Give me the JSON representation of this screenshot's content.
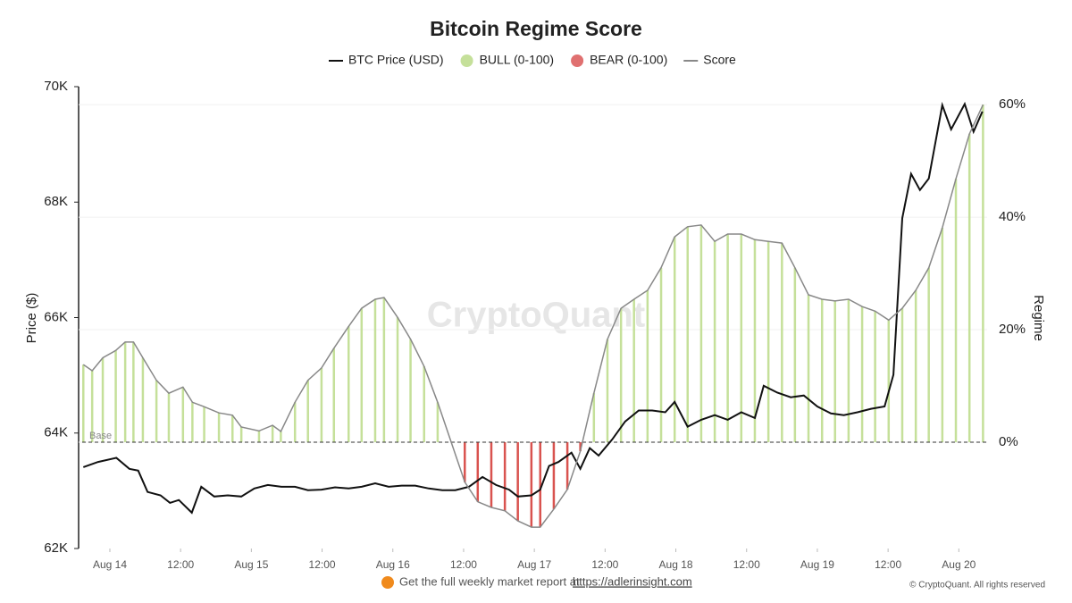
{
  "chart_data": {
    "type": "line",
    "title": "Bitcoin Regime Score",
    "ylabel": "Price ($)",
    "y2label": "Regime",
    "baseline_label": "Base",
    "watermark": "CryptoQuant",
    "footer": "Get the full weekly market report at",
    "footer_link": "https://adlerinsight.com",
    "copyright": "© CryptoQuant. All rights reserved",
    "legend": [
      {
        "name": "BTC Price (USD)",
        "color": "#111111",
        "shape": "line"
      },
      {
        "name": "BULL (0-100)",
        "color": "#c5e09a",
        "shape": "circle"
      },
      {
        "name": "BEAR (0-100)",
        "color": "#e07070",
        "shape": "circle"
      },
      {
        "name": "Score",
        "color": "#888888",
        "shape": "line"
      }
    ],
    "xlim": [
      -5.3,
      148.8
    ],
    "xticks": [
      {
        "value": 0,
        "label": "Aug 14"
      },
      {
        "value": 12,
        "label": "12:00"
      },
      {
        "value": 24,
        "label": "Aug 15"
      },
      {
        "value": 36,
        "label": "12:00"
      },
      {
        "value": 48,
        "label": "Aug 16"
      },
      {
        "value": 60,
        "label": "12:00"
      },
      {
        "value": 72,
        "label": "Aug 17"
      },
      {
        "value": 84,
        "label": "12:00"
      },
      {
        "value": 96,
        "label": "Aug 18"
      },
      {
        "value": 108,
        "label": "12:00"
      },
      {
        "value": 120,
        "label": "Aug 19"
      },
      {
        "value": 132,
        "label": "12:00"
      },
      {
        "value": 144,
        "label": "Aug 20"
      }
    ],
    "ylim": [
      62000,
      70000
    ],
    "yticks": [
      {
        "value": 62000,
        "label": "62K"
      },
      {
        "value": 64000,
        "label": "64K"
      },
      {
        "value": 66000,
        "label": "66K"
      },
      {
        "value": 68000,
        "label": "68K"
      },
      {
        "value": 70000,
        "label": "70K"
      }
    ],
    "y2lim": [
      -18.9,
      63.2
    ],
    "y2ticks": [
      {
        "value": 0,
        "label": "0%"
      },
      {
        "value": 20,
        "label": "20%"
      },
      {
        "value": 40,
        "label": "40%"
      },
      {
        "value": 60,
        "label": "60%"
      }
    ],
    "bull_color": "#c5e09a",
    "bear_color": "#d9534f",
    "series": [
      {
        "name": "BTC Price (USD)",
        "color": "#111111",
        "axis": "y",
        "x": [
          -4.5,
          -2,
          1.1,
          3.3,
          4.8,
          6.4,
          8.6,
          10.2,
          11.7,
          13.9,
          15.5,
          17.7,
          20,
          22.3,
          24.5,
          26.8,
          29.1,
          31.4,
          33.6,
          35.9,
          38.2,
          40.5,
          42.7,
          45,
          47.3,
          49.5,
          51.8,
          54.1,
          56.4,
          58.6,
          60.9,
          63.2,
          65.5,
          67.7,
          69.2,
          71.5,
          73,
          74.5,
          76.1,
          78.3,
          79.8,
          81.4,
          82.9,
          85.2,
          87.4,
          89.7,
          92,
          94.2,
          95.8,
          98,
          100.3,
          102.6,
          104.8,
          107.1,
          109.4,
          110.9,
          113.2,
          115.5,
          117.7,
          120,
          122.3,
          124.5,
          126.8,
          129.1,
          131.4,
          132.9,
          134.4,
          135.9,
          137.4,
          138.9,
          141.2,
          142.7,
          145,
          146.5,
          148
        ],
        "values": [
          63410,
          63500,
          63570,
          63380,
          63350,
          62980,
          62920,
          62790,
          62840,
          62620,
          63070,
          62900,
          62920,
          62900,
          63040,
          63100,
          63070,
          63070,
          63010,
          63020,
          63060,
          63040,
          63070,
          63130,
          63070,
          63090,
          63090,
          63040,
          63010,
          63010,
          63070,
          63240,
          63100,
          63020,
          62900,
          62920,
          63020,
          63430,
          63500,
          63660,
          63380,
          63740,
          63610,
          63890,
          64200,
          64390,
          64390,
          64360,
          64540,
          64110,
          64230,
          64310,
          64230,
          64360,
          64260,
          64820,
          64700,
          64620,
          64650,
          64460,
          64340,
          64310,
          64360,
          64420,
          64460,
          65010,
          67720,
          68490,
          68210,
          68410,
          69680,
          69260,
          69700,
          69220,
          69570
        ]
      },
      {
        "name": "Score",
        "color": "#888888",
        "axis": "y2",
        "x": [
          -4.5,
          -3,
          -1.2,
          1,
          2.6,
          4,
          5.6,
          7.9,
          10,
          12.4,
          14,
          16,
          18.5,
          20.8,
          22.3,
          25.3,
          27.6,
          29,
          31.4,
          33.6,
          35.9,
          38,
          40.5,
          42.7,
          45,
          46.5,
          48.8,
          51,
          53.3,
          55.6,
          57.9,
          60.2,
          62.4,
          64.7,
          67,
          69.2,
          71.5,
          73,
          75.3,
          77.6,
          79.8,
          82.1,
          84.4,
          86.7,
          88.9,
          91.2,
          93.5,
          95.8,
          98,
          100.3,
          102.6,
          104.8,
          107.1,
          109.4,
          111.7,
          114,
          116.2,
          118.5,
          120.8,
          123,
          125.3,
          127.6,
          129.8,
          132.1,
          134.4,
          136.7,
          138.9,
          141.2,
          143.5,
          145.8,
          148.1
        ],
        "values": [
          13.8,
          12.7,
          15,
          16.3,
          17.8,
          17.8,
          15,
          11,
          8.7,
          9.8,
          7.1,
          6.3,
          5.2,
          4.8,
          2.7,
          2,
          3,
          1.9,
          7.1,
          11,
          13.2,
          16.7,
          20.6,
          23.8,
          25.4,
          25.7,
          22.2,
          18.3,
          13.5,
          7.1,
          0,
          -7.1,
          -10.6,
          -11.6,
          -12.2,
          -14,
          -15.1,
          -15.1,
          -11.9,
          -8.4,
          -1.6,
          8.7,
          18.3,
          23.8,
          25.4,
          27,
          31,
          36.5,
          38.3,
          38.6,
          35.7,
          37,
          37,
          36,
          35.7,
          35.4,
          31,
          26.2,
          25.4,
          25.1,
          25.4,
          24.1,
          23.3,
          21.7,
          23.8,
          27,
          31,
          38.1,
          46.8,
          54.8,
          60
        ]
      }
    ]
  }
}
